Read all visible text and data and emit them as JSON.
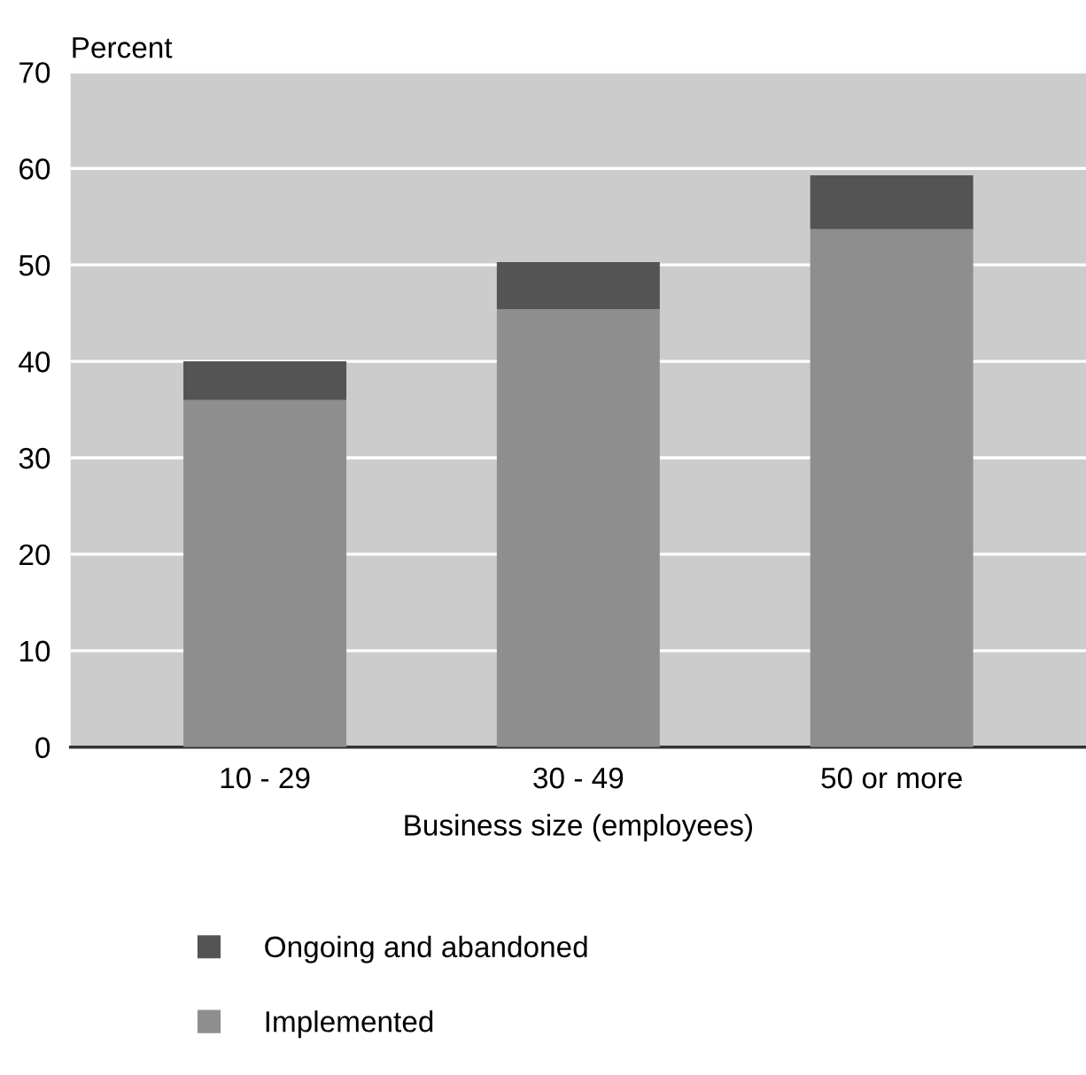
{
  "chart_data": {
    "type": "bar",
    "stacked": true,
    "ylabel": "Percent",
    "xlabel": "Business size (employees)",
    "categories": [
      "10 - 29",
      "30 - 49",
      "50 or more"
    ],
    "series": [
      {
        "name": "Implemented",
        "color": "#8e8e8e",
        "values": [
          36,
          45.4,
          53.7
        ]
      },
      {
        "name": "Ongoing and abandoned",
        "color": "#545454",
        "values": [
          4,
          4.9,
          5.6
        ]
      }
    ],
    "ylim": [
      0,
      70
    ],
    "yticks": [
      0,
      10,
      20,
      30,
      40,
      50,
      60,
      70
    ],
    "grid": "y",
    "legend": "bottom"
  }
}
